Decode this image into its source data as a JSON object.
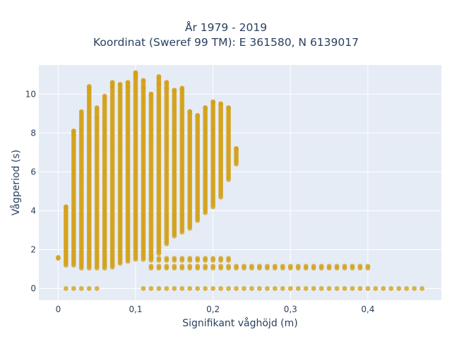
{
  "chart_data": {
    "type": "scatter",
    "title_lines": [
      "År 1979 - 2019",
      "Koordinat (Sweref 99 TM): E 361580, N 6139017"
    ],
    "xlabel": "Signifikant våghöjd (m)",
    "ylabel": "Vågperiod (s)",
    "xlim": [
      -0.025,
      0.495
    ],
    "ylim": [
      -0.6,
      11.5
    ],
    "x_ticks": [
      0,
      0.1,
      0.2,
      0.3,
      0.4
    ],
    "x_tick_labels": [
      "0",
      "0,1",
      "0,2",
      "0,3",
      "0,4"
    ],
    "y_ticks": [
      0,
      2,
      4,
      6,
      8,
      10
    ],
    "y_tick_labels": [
      "0",
      "2",
      "4",
      "6",
      "8",
      "10"
    ],
    "grid": true,
    "legend": "none",
    "colors": {
      "marker": "#D4A017",
      "plot_bg": "#E5ECF6",
      "grid": "#ffffff",
      "text": "#2a3f5f"
    },
    "columns": [
      {
        "x": 0.0,
        "ymin": 1.55,
        "ymax": 1.6
      },
      {
        "x": 0.01,
        "ymin": 1.2,
        "ymax": 4.2
      },
      {
        "x": 0.02,
        "ymin": 1.2,
        "ymax": 8.1
      },
      {
        "x": 0.03,
        "ymin": 1.05,
        "ymax": 9.1
      },
      {
        "x": 0.04,
        "ymin": 1.05,
        "ymax": 10.4
      },
      {
        "x": 0.05,
        "ymin": 1.05,
        "ymax": 9.3
      },
      {
        "x": 0.06,
        "ymin": 1.05,
        "ymax": 9.9
      },
      {
        "x": 0.07,
        "ymin": 1.1,
        "ymax": 10.6
      },
      {
        "x": 0.08,
        "ymin": 1.3,
        "ymax": 10.5
      },
      {
        "x": 0.09,
        "ymin": 1.4,
        "ymax": 10.6
      },
      {
        "x": 0.1,
        "ymin": 1.5,
        "ymax": 11.1
      },
      {
        "x": 0.11,
        "ymin": 1.5,
        "ymax": 10.7
      },
      {
        "x": 0.12,
        "ymin": 1.6,
        "ymax": 10.0
      },
      {
        "x": 0.13,
        "ymin": 1.8,
        "ymax": 10.9
      },
      {
        "x": 0.14,
        "ymin": 2.3,
        "ymax": 10.6
      },
      {
        "x": 0.15,
        "ymin": 2.7,
        "ymax": 10.2
      },
      {
        "x": 0.16,
        "ymin": 2.9,
        "ymax": 10.3
      },
      {
        "x": 0.17,
        "ymin": 3.1,
        "ymax": 9.1
      },
      {
        "x": 0.18,
        "ymin": 3.5,
        "ymax": 8.9
      },
      {
        "x": 0.19,
        "ymin": 3.9,
        "ymax": 9.3
      },
      {
        "x": 0.2,
        "ymin": 4.2,
        "ymax": 9.6
      },
      {
        "x": 0.21,
        "ymin": 4.7,
        "ymax": 9.5
      },
      {
        "x": 0.22,
        "ymin": 5.6,
        "ymax": 9.3
      },
      {
        "x": 0.23,
        "ymin": 6.4,
        "ymax": 7.2
      }
    ],
    "row_1_5": {
      "y": 1.5,
      "xmin": 0.12,
      "xmax": 0.22
    },
    "row_1_1": {
      "y": 1.1,
      "xmin": 0.12,
      "xmax": 0.4
    },
    "row_0": [
      0.01,
      0.02,
      0.03,
      0.04,
      0.05,
      0.11,
      0.12,
      0.13,
      0.14,
      0.15,
      0.16,
      0.17,
      0.18,
      0.19,
      0.2,
      0.21,
      0.22,
      0.23,
      0.24,
      0.25,
      0.26,
      0.27,
      0.28,
      0.29,
      0.3,
      0.31,
      0.32,
      0.33,
      0.34,
      0.35,
      0.36,
      0.37,
      0.38,
      0.39,
      0.4,
      0.41,
      0.42,
      0.43,
      0.44,
      0.45,
      0.46,
      0.47
    ],
    "outliers": [
      {
        "x": 0.04,
        "y": 10.3
      },
      {
        "x": 0.09,
        "y": 10.4
      },
      {
        "x": 0.1,
        "y": 10.9
      },
      {
        "x": 0.11,
        "y": 10.3
      },
      {
        "x": 0.13,
        "y": 10.5
      },
      {
        "x": 0.14,
        "y": 10.3
      },
      {
        "x": 0.07,
        "y": 10.4
      },
      {
        "x": 0.05,
        "y": 8.8
      },
      {
        "x": 0.02,
        "y": 7.9
      }
    ]
  }
}
